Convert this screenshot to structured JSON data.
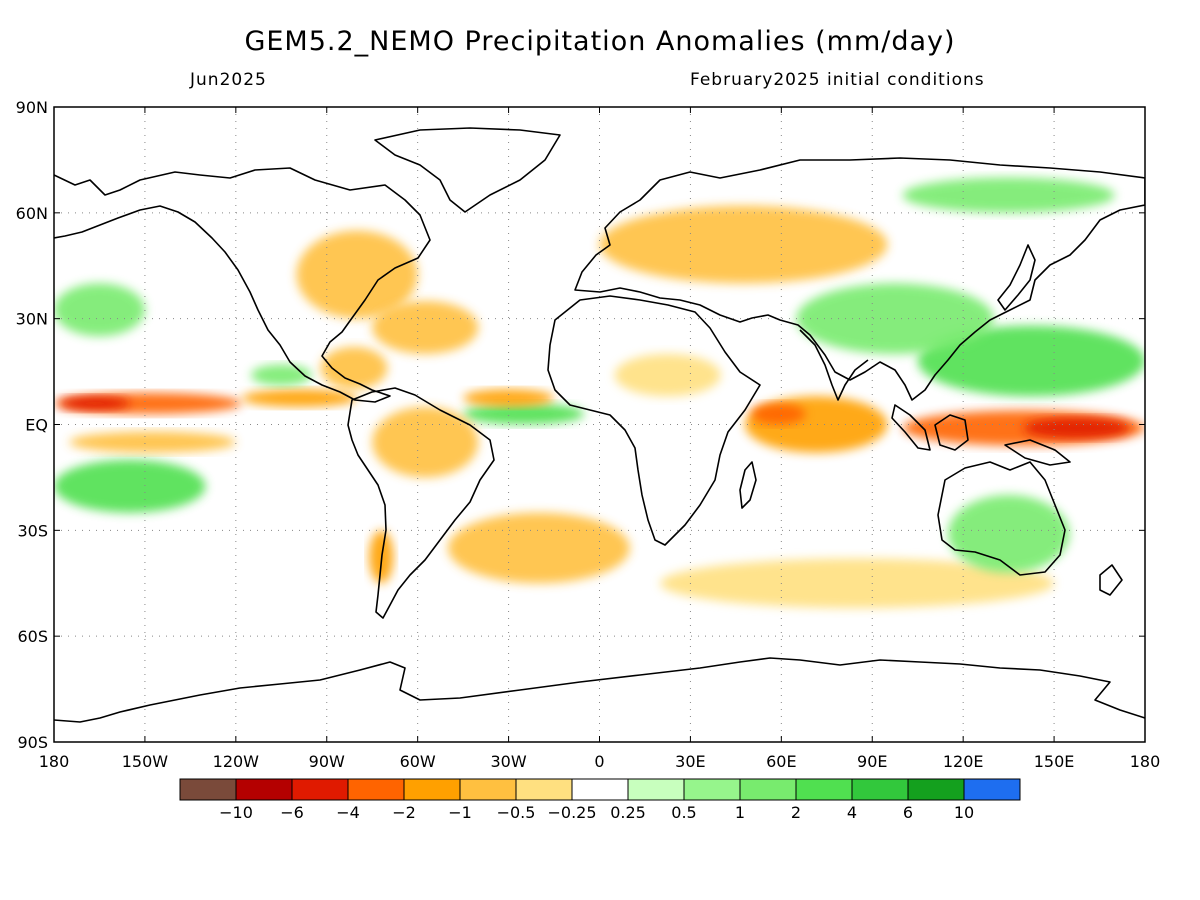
{
  "header": {
    "title": "GEM5.2_NEMO Precipitation Anomalies (mm/day)",
    "month": "Jun2025",
    "initial_conditions": "February2025 initial conditions"
  },
  "map": {
    "lat_ticks": [
      "90N",
      "60N",
      "30N",
      "EQ",
      "30S",
      "60S",
      "90S"
    ],
    "lon_ticks": [
      "180",
      "150W",
      "120W",
      "90W",
      "60W",
      "30W",
      "0",
      "30E",
      "60E",
      "90E",
      "120E",
      "150E",
      "180"
    ]
  },
  "colorbar": {
    "colors": [
      "#7a4a3a",
      "#b40000",
      "#e01a00",
      "#ff6400",
      "#ffa000",
      "#ffc040",
      "#ffe080",
      "#ffffff",
      "#c8ffbe",
      "#96f58c",
      "#78eb6e",
      "#50e050",
      "#32c83c",
      "#14a01e",
      "#1e6ef0"
    ],
    "labels": [
      "−10",
      "−6",
      "−4",
      "−2",
      "−1",
      "−0.5",
      "−0.25",
      "0.25",
      "0.5",
      "1",
      "2",
      "4",
      "6",
      "10"
    ]
  },
  "anomaly_regions": [
    {
      "name": "itcz-central-pacific-dry",
      "lon": [
        -180,
        -118
      ],
      "lat": [
        3,
        9
      ],
      "level": -4
    },
    {
      "name": "itcz-central-pacific-core",
      "lon": [
        -178,
        -155
      ],
      "lat": [
        4,
        8
      ],
      "level": -6
    },
    {
      "name": "itcz-east-pacific-dry",
      "lon": [
        -118,
        -80
      ],
      "lat": [
        5,
        10
      ],
      "level": -2
    },
    {
      "name": "central-america-dry",
      "lon": [
        -92,
        -70
      ],
      "lat": [
        10,
        22
      ],
      "level": -1
    },
    {
      "name": "east-pacific-wet",
      "lon": [
        -115,
        -95
      ],
      "lat": [
        11,
        17
      ],
      "level": 1
    },
    {
      "name": "equatorial-atlantic-wet",
      "lon": [
        -45,
        -5
      ],
      "lat": [
        0,
        6
      ],
      "level": 2
    },
    {
      "name": "west-atlantic-dry",
      "lon": [
        -45,
        -15
      ],
      "lat": [
        5,
        10
      ],
      "level": -2
    },
    {
      "name": "indian-ocean-dry",
      "lon": [
        48,
        95
      ],
      "lat": [
        -8,
        8
      ],
      "level": -2
    },
    {
      "name": "indian-ocean-core",
      "lon": [
        50,
        68
      ],
      "lat": [
        0,
        6
      ],
      "level": -4
    },
    {
      "name": "maritime-continent-dry",
      "lon": [
        100,
        180
      ],
      "lat": [
        -6,
        4
      ],
      "level": -4
    },
    {
      "name": "west-pacific-core",
      "lon": [
        140,
        175
      ],
      "lat": [
        -4,
        2
      ],
      "level": -6
    },
    {
      "name": "west-pacific-wet",
      "lon": [
        105,
        180
      ],
      "lat": [
        8,
        28
      ],
      "level": 2
    },
    {
      "name": "east-asia-wet",
      "lon": [
        65,
        130
      ],
      "lat": [
        20,
        40
      ],
      "level": 1
    },
    {
      "name": "south-pacific-wet",
      "lon": [
        -180,
        -130
      ],
      "lat": [
        -25,
        -10
      ],
      "level": 2
    },
    {
      "name": "south-pacific-dry",
      "lon": [
        -175,
        -120
      ],
      "lat": [
        -8,
        -2
      ],
      "level": -1
    },
    {
      "name": "south-atlantic-dry",
      "lon": [
        -50,
        10
      ],
      "lat": [
        -45,
        -25
      ],
      "level": -1
    },
    {
      "name": "southern-ocean-dry",
      "lon": [
        20,
        150
      ],
      "lat": [
        -52,
        -38
      ],
      "level": -0.5
    },
    {
      "name": "australia-wet",
      "lon": [
        115,
        155
      ],
      "lat": [
        -42,
        -20
      ],
      "level": 1
    },
    {
      "name": "europe-asia-dry",
      "lon": [
        0,
        95
      ],
      "lat": [
        40,
        62
      ],
      "level": -1
    },
    {
      "name": "north-america-dry",
      "lon": [
        -100,
        -60
      ],
      "lat": [
        30,
        55
      ],
      "level": -1
    },
    {
      "name": "north-atlantic-dry",
      "lon": [
        -75,
        -40
      ],
      "lat": [
        20,
        35
      ],
      "level": -1
    },
    {
      "name": "north-pacific-wet",
      "lon": [
        -180,
        -150
      ],
      "lat": [
        25,
        40
      ],
      "level": 1
    },
    {
      "name": "africa-sahel-dry",
      "lon": [
        5,
        40
      ],
      "lat": [
        8,
        20
      ],
      "level": -0.5
    },
    {
      "name": "south-america-dry",
      "lon": [
        -75,
        -40
      ],
      "lat": [
        -15,
        5
      ],
      "level": -1
    },
    {
      "name": "chile-dry",
      "lon": [
        -76,
        -68
      ],
      "lat": [
        -45,
        -30
      ],
      "level": -2
    },
    {
      "name": "north-siberia-wet",
      "lon": [
        100,
        170
      ],
      "lat": [
        60,
        70
      ],
      "level": 1
    }
  ]
}
